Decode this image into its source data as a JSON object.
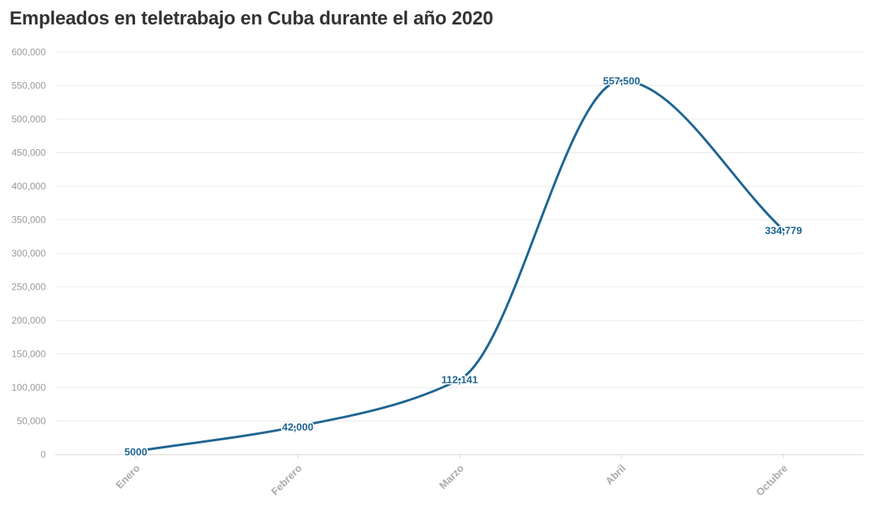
{
  "title": "Empleados en teletrabajo en Cuba durante el año 2020",
  "chart_data": {
    "type": "line",
    "title": "Empleados en teletrabajo en Cuba durante el año 2020",
    "categories": [
      "Enero",
      "Febrero",
      "Marzo",
      "Abril",
      "Octubre"
    ],
    "series": [
      {
        "values": [
          5000,
          42000,
          112141,
          557500,
          334779
        ],
        "labels": [
          "5000",
          "42,000",
          "112,141",
          "557,500",
          "334,779"
        ],
        "color": "#1f6591"
      }
    ],
    "ylim": [
      0,
      600000
    ],
    "yticks": [
      0,
      50000,
      100000,
      150000,
      200000,
      250000,
      300000,
      350000,
      400000,
      450000,
      500000,
      550000,
      600000
    ],
    "ytick_labels": [
      "0",
      "50,000",
      "100,000",
      "150,000",
      "200,000",
      "250,000",
      "300,000",
      "350,000",
      "400,000",
      "450,000",
      "500,000",
      "550,000",
      "600,000"
    ],
    "grid": true,
    "xlabel": "",
    "ylabel": ""
  }
}
